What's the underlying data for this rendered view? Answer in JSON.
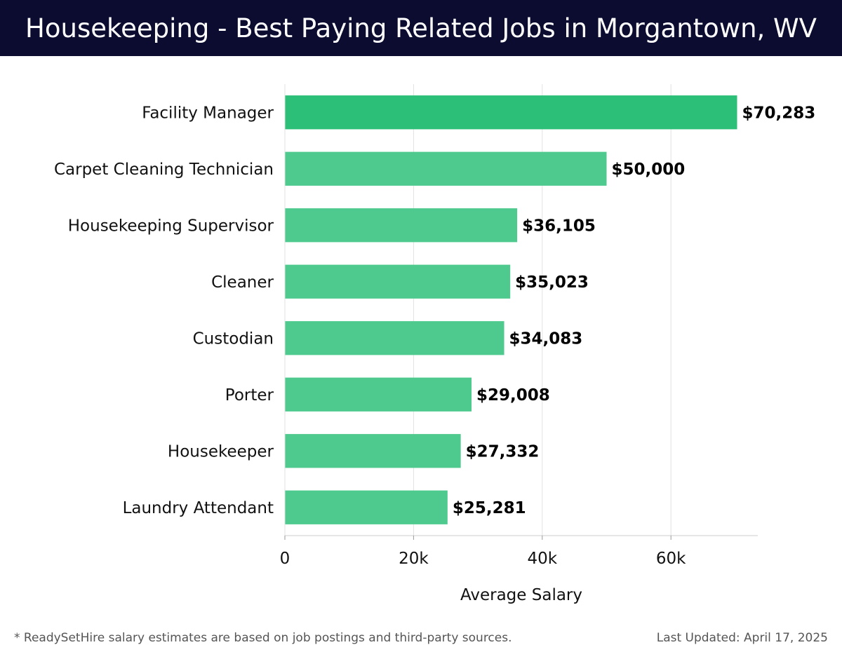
{
  "header": {
    "title": "Housekeeping - Best Paying Related Jobs in Morgantown, WV"
  },
  "chart_data": {
    "type": "bar",
    "orientation": "horizontal",
    "categories": [
      "Facility Manager",
      "Carpet Cleaning Technician",
      "Housekeeping Supervisor",
      "Cleaner",
      "Custodian",
      "Porter",
      "Housekeeper",
      "Laundry Attendant"
    ],
    "values": [
      70283,
      50000,
      36105,
      35023,
      34083,
      29008,
      27332,
      25281
    ],
    "value_labels": [
      "$70,283",
      "$50,000",
      "$36,105",
      "$35,023",
      "$34,083",
      "$29,008",
      "$27,332",
      "$25,281"
    ],
    "xlabel": "Average Salary",
    "xlim": [
      0,
      73500
    ],
    "xticks": [
      0,
      20000,
      40000,
      60000
    ],
    "xtick_labels": [
      "0",
      "20k",
      "40k",
      "60k"
    ],
    "grid": true,
    "colors": {
      "top_bar": "#2bbf77",
      "bar": "#4fca8f"
    }
  },
  "footer": {
    "note": "* ReadySetHire salary estimates are based on job postings and third-party sources.",
    "updated": "Last Updated: April 17, 2025"
  }
}
